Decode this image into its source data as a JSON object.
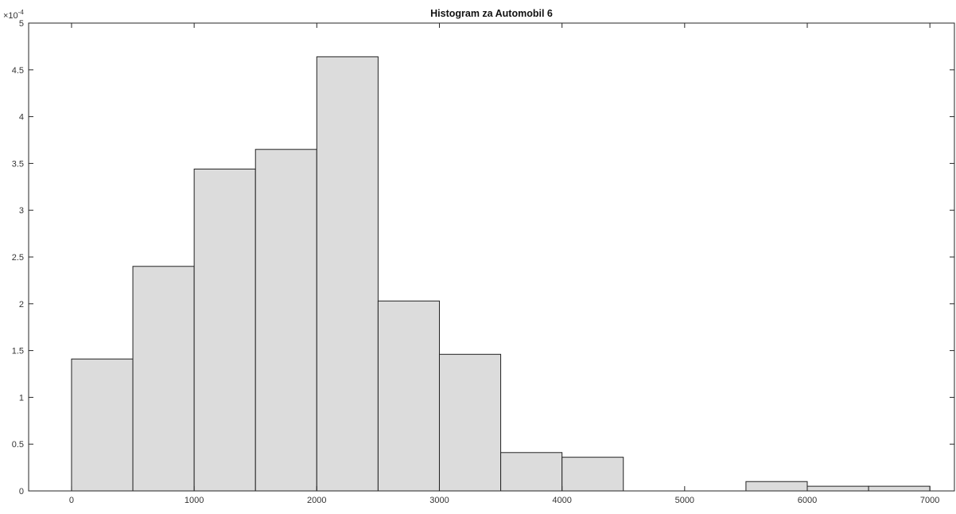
{
  "chart_data": {
    "type": "bar",
    "title": "Histogram za Automobil 6",
    "xlabel": "",
    "ylabel": "",
    "y_exponent_label": "×10",
    "y_exponent_power": "-4",
    "xlim": [
      -350,
      7200
    ],
    "ylim": [
      0,
      5
    ],
    "xticks": [
      0,
      1000,
      2000,
      3000,
      4000,
      5000,
      6000,
      7000
    ],
    "yticks": [
      0,
      0.5,
      1,
      1.5,
      2,
      2.5,
      3,
      3.5,
      4,
      4.5,
      5
    ],
    "bin_edges": [
      0,
      500,
      1000,
      1500,
      2000,
      2500,
      3000,
      3500,
      4000,
      4500,
      5000,
      5500,
      6000,
      6500,
      7000
    ],
    "values": [
      1.41,
      2.4,
      3.44,
      3.65,
      4.64,
      2.03,
      1.46,
      0.41,
      0.36,
      0,
      0,
      0.1,
      0.05,
      0.05
    ],
    "bar_color": "#dcdcdc",
    "edge_color": "#222222",
    "grid": false,
    "legend": "none"
  }
}
